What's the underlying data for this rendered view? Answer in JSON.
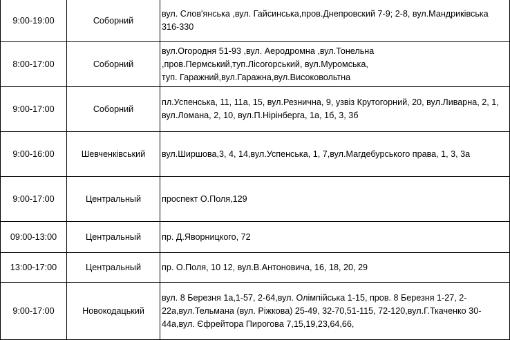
{
  "rows": [
    {
      "time": "9:00-19:00",
      "district": "Соборний",
      "address": "вул. Слов'янська ,вул. Гайсинська,пров.Днепровский 7-9; 2-8, вул.Мандриківська 316-330"
    },
    {
      "time": "8:00-17:00",
      "district": "Соборний",
      "address": "вул.Огородня 51-93 ,вул. Аеродромна ,вул.Тонельна ,пров.Пермський,туп.Лісогорський, вул.Муромська, туп. Гаражний,вул.Гаражна,вул.Високовольтна"
    },
    {
      "time": "9:00-17:00",
      "district": "Соборний",
      "address": "пл.Успенська, 11, 11а, 15, вул.Резнична, 9, узвіз Крутогорний, 20, вул.Ливарна, 2, 1, вул.Ломана, 2, 10, вул.П.Нірінберга, 1а, 1б, 3, 3б"
    },
    {
      "time": "9:00-16:00",
      "district": "Шевченківський",
      "address": "вул.Ширшова,3, 4,  14,вул.Успенська, 1, 7,вул.Магдебурського права, 1, 3, 3а"
    },
    {
      "time": "9:00-17:00",
      "district": "Центральный",
      "address": "проспект О.Поля,129"
    },
    {
      "time": "09:00-13:00",
      "district": "Центральный",
      "address": "пр. Д.Яворницкого, 72"
    },
    {
      "time": "13:00-17:00",
      "district": "Центральный",
      "address": "пр. О.Поля, 10 12, вул.В.Антоновича, 16,  18, 20, 29"
    },
    {
      "time": "9:00-17:00",
      "district": "Новокодацький",
      "address": "вул. 8 Березня 1а,1-57, 2-64,вул. Олімпійська 1-15, пров. 8 Березня 1-27,  2-22а,вул.Тельмана (вул. Ріжкова) 25-49, 32-70,51-115, 72-120,вул.Г.Ткаченко 30-44а,вул. Єфрейтора Пирогова 7,15,19,23,64,66,"
    }
  ]
}
